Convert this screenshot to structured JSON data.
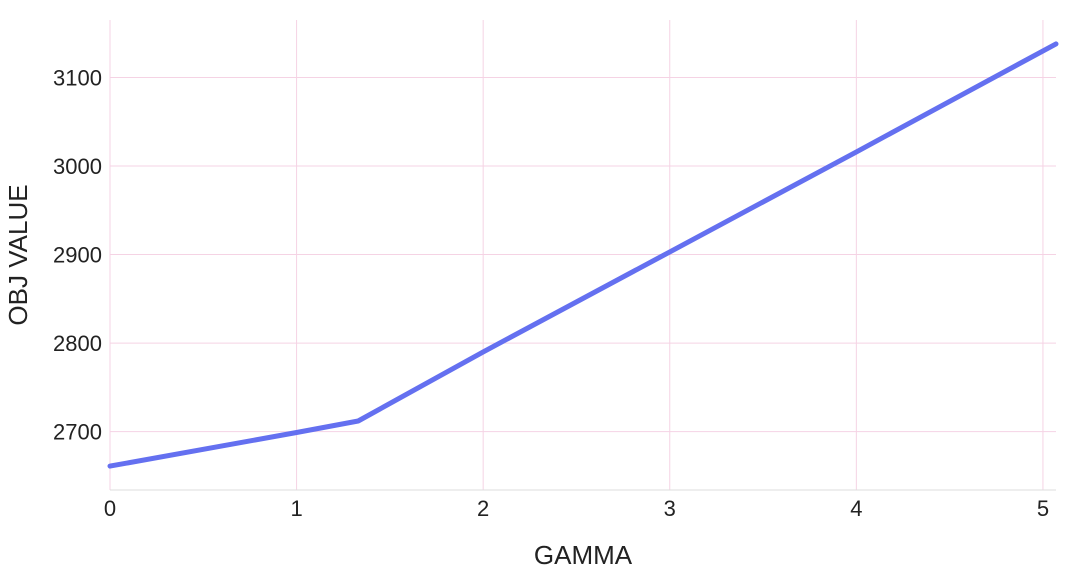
{
  "chart_data": {
    "type": "line",
    "xlabel": "GAMMA",
    "ylabel": "OBJ VALUE",
    "xlim": [
      0,
      5.07
    ],
    "ylim": [
      2634,
      3165
    ],
    "x_ticks": [
      0,
      1,
      2,
      3,
      4,
      5
    ],
    "y_ticks": [
      2700,
      2800,
      2900,
      3000,
      3100
    ],
    "grid": true,
    "legend": "none",
    "colors": {
      "line": "#6470f0",
      "grid": "#f5d3e4",
      "axis": "#dddddd"
    },
    "series": [
      {
        "x": [
          0,
          1,
          1.33,
          2,
          3,
          4,
          4.5,
          5.07
        ],
        "y": [
          2661,
          2699,
          2712,
          2790,
          2903,
          3016,
          3073,
          3138
        ]
      }
    ]
  }
}
